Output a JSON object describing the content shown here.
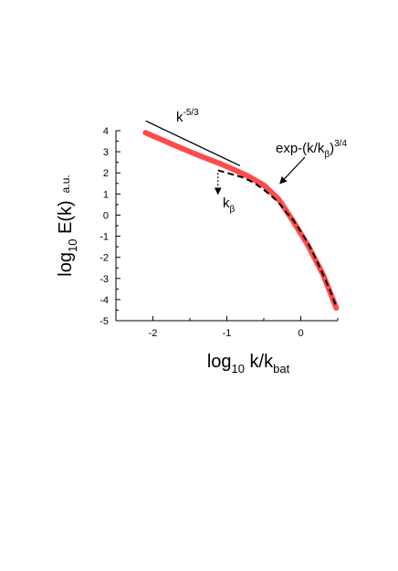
{
  "chart_data": {
    "type": "line",
    "xlim": [
      -2.5,
      0.5
    ],
    "ylim": [
      -5,
      4
    ],
    "x_ticks": [
      -2,
      -1,
      0
    ],
    "y_ticks": [
      -5,
      -4,
      -3,
      -2,
      -1,
      0,
      1,
      2,
      3,
      4
    ],
    "x_tick_labels": [
      "-2",
      "-1",
      "0"
    ],
    "y_tick_labels": [
      "-5",
      "-4",
      "-3",
      "-2",
      "-1",
      "0",
      "1",
      "2",
      "3",
      "4"
    ],
    "xlabel": {
      "base": "log",
      "sub": "10",
      "rest": " k/k",
      "sub2": "bat"
    },
    "ylabel": {
      "base": "log",
      "sub": "10",
      "rest": " E(k)",
      "units": "a.u."
    },
    "grid": false,
    "series": [
      {
        "style": "thick-solid",
        "color": "#ff4b4b",
        "x": [
          -2.1,
          -1.9,
          -1.7,
          -1.5,
          -1.3,
          -1.1,
          -0.9,
          -0.7,
          -0.5,
          -0.3,
          -0.1,
          0.1,
          0.3,
          0.48
        ],
        "y": [
          3.9,
          3.6,
          3.3,
          3.0,
          2.72,
          2.45,
          2.15,
          1.82,
          1.42,
          0.75,
          -0.3,
          -1.45,
          -2.8,
          -4.4
        ]
      },
      {
        "style": "dashed",
        "color": "#000000",
        "x": [
          -1.12,
          -1.0,
          -0.9,
          -0.8,
          -0.7,
          -0.6,
          -0.5,
          -0.4,
          -0.3,
          -0.2,
          -0.1,
          0.0,
          0.1,
          0.2,
          0.3,
          0.4,
          0.48
        ],
        "y": [
          2.12,
          2.0,
          1.9,
          1.8,
          1.65,
          1.45,
          1.2,
          0.92,
          0.6,
          0.15,
          -0.25,
          -0.78,
          -1.35,
          -2.05,
          -2.8,
          -3.6,
          -4.35
        ]
      },
      {
        "style": "reference-line",
        "color": "#000000",
        "x": [
          -2.09,
          -0.83
        ],
        "y": [
          4.45,
          2.35
        ]
      }
    ],
    "annotations": [
      {
        "id": "slope",
        "base": "k",
        "sup": "-5/3"
      },
      {
        "id": "exp",
        "base": "exp-(k/k",
        "sub": "β",
        "close": ")",
        "sup": "3/4",
        "arrow_to": [
          -0.28,
          1.5
        ]
      },
      {
        "id": "kbeta",
        "base": "k",
        "sub": "β",
        "arrow_from": [
          -1.12,
          2.0
        ],
        "arrow_to": [
          -1.12,
          1.0
        ]
      }
    ]
  }
}
